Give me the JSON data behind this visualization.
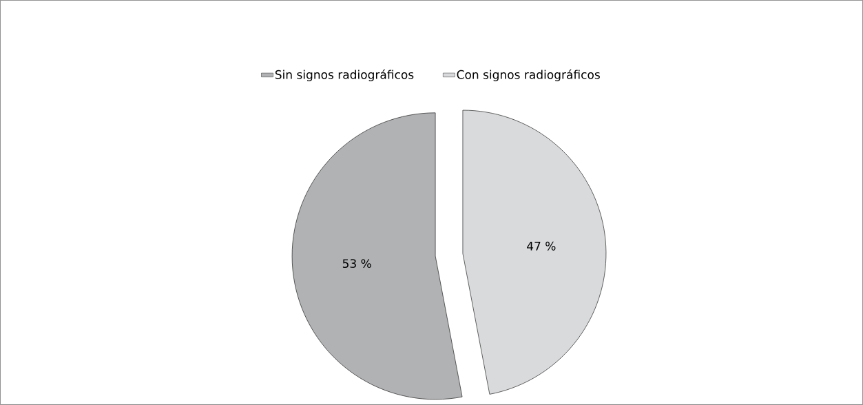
{
  "chart_data": {
    "type": "pie",
    "categories": [
      "Sin signos radiográficos",
      "Con signos radiográficos"
    ],
    "values": [
      53,
      47
    ],
    "colors": [
      "#b1b2b4",
      "#d9dadc"
    ],
    "value_labels": [
      "53 %",
      "47 %"
    ],
    "legend": "top"
  }
}
